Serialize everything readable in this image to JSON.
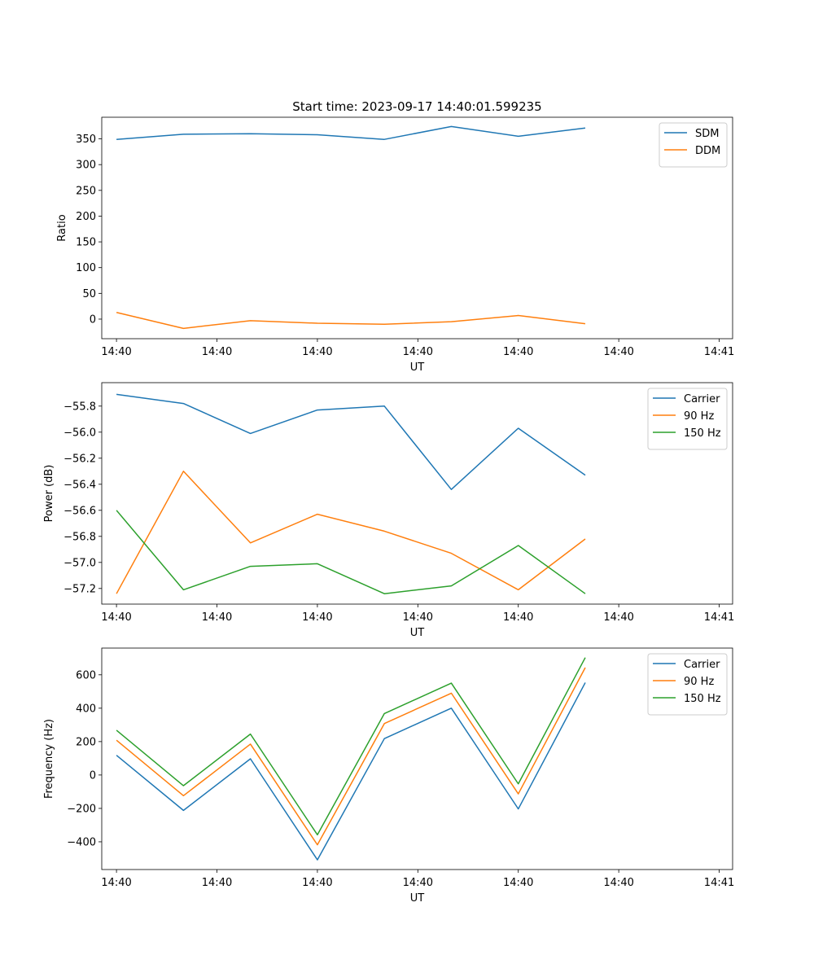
{
  "figure_title": "Start time: 2023-09-17 14:40:01.599235",
  "chart_data": [
    {
      "type": "line",
      "title": "Start time: 2023-09-17 14:40:01.599235",
      "xlabel": "UT",
      "ylabel": "Ratio",
      "x": [
        1,
        2,
        3,
        4,
        5,
        6,
        7,
        8
      ],
      "xlim": [
        0.78,
        10.2
      ],
      "x_ticks": [
        1,
        2.5,
        4,
        5.5,
        7,
        8.5,
        10
      ],
      "x_tick_labels": [
        "14:40",
        "14:40",
        "14:40",
        "14:40",
        "14:40",
        "14:40",
        "14:41"
      ],
      "ylim": [
        -38,
        392
      ],
      "y_ticks": [
        0,
        50,
        100,
        150,
        200,
        250,
        300,
        350
      ],
      "y_tick_labels": [
        "0",
        "50",
        "100",
        "150",
        "200",
        "250",
        "300",
        "350"
      ],
      "legend": "top-right",
      "series": [
        {
          "name": "SDM",
          "color": "#1f77b4",
          "values": [
            349,
            359,
            360,
            358,
            349,
            374,
            355,
            371
          ]
        },
        {
          "name": "DDM",
          "color": "#ff7f0e",
          "values": [
            13,
            -18,
            -3,
            -8,
            -10,
            -5,
            7,
            -9
          ]
        }
      ]
    },
    {
      "type": "line",
      "xlabel": "UT",
      "ylabel": "Power (dB)",
      "x": [
        1,
        2,
        3,
        4,
        5,
        6,
        7,
        8
      ],
      "xlim": [
        0.78,
        10.2
      ],
      "x_ticks": [
        1,
        2.5,
        4,
        5.5,
        7,
        8.5,
        10
      ],
      "x_tick_labels": [
        "14:40",
        "14:40",
        "14:40",
        "14:40",
        "14:40",
        "14:40",
        "14:41"
      ],
      "ylim": [
        -57.32,
        -55.62
      ],
      "y_ticks": [
        -57.2,
        -57.0,
        -56.8,
        -56.6,
        -56.4,
        -56.2,
        -56.0,
        -55.8
      ],
      "y_tick_labels": [
        "−57.2",
        "−57.0",
        "−56.8",
        "−56.6",
        "−56.4",
        "−56.2",
        "−56.0",
        "−55.8"
      ],
      "legend": "top-right",
      "series": [
        {
          "name": "Carrier",
          "color": "#1f77b4",
          "values": [
            -55.71,
            -55.78,
            -56.01,
            -55.83,
            -55.8,
            -56.44,
            -55.97,
            -56.33
          ]
        },
        {
          "name": "90 Hz",
          "color": "#ff7f0e",
          "values": [
            -57.24,
            -56.3,
            -56.85,
            -56.63,
            -56.76,
            -56.93,
            -57.21,
            -56.82
          ]
        },
        {
          "name": "150 Hz",
          "color": "#2ca02c",
          "values": [
            -56.6,
            -57.21,
            -57.03,
            -57.01,
            -57.24,
            -57.18,
            -56.87,
            -57.24
          ]
        }
      ]
    },
    {
      "type": "line",
      "xlabel": "UT",
      "ylabel": "Frequency (Hz)",
      "x": [
        1,
        2,
        3,
        4,
        5,
        6,
        7,
        8
      ],
      "xlim": [
        0.78,
        10.2
      ],
      "x_ticks": [
        1,
        2.5,
        4,
        5.5,
        7,
        8.5,
        10
      ],
      "x_tick_labels": [
        "14:40",
        "14:40",
        "14:40",
        "14:40",
        "14:40",
        "14:40",
        "14:41"
      ],
      "ylim": [
        -566,
        760
      ],
      "y_ticks": [
        -400,
        -200,
        0,
        200,
        400,
        600
      ],
      "y_tick_labels": [
        "−400",
        "−200",
        "0",
        "200",
        "400",
        "600"
      ],
      "legend": "top-right",
      "series": [
        {
          "name": "Carrier",
          "color": "#1f77b4",
          "values": [
            118,
            -212,
            97,
            -508,
            218,
            400,
            -203,
            553
          ]
        },
        {
          "name": "90 Hz",
          "color": "#ff7f0e",
          "values": [
            208,
            -124,
            185,
            -418,
            308,
            490,
            -113,
            643
          ]
        },
        {
          "name": "150 Hz",
          "color": "#2ca02c",
          "values": [
            268,
            -64,
            245,
            -358,
            368,
            550,
            -53,
            703
          ]
        }
      ]
    }
  ]
}
